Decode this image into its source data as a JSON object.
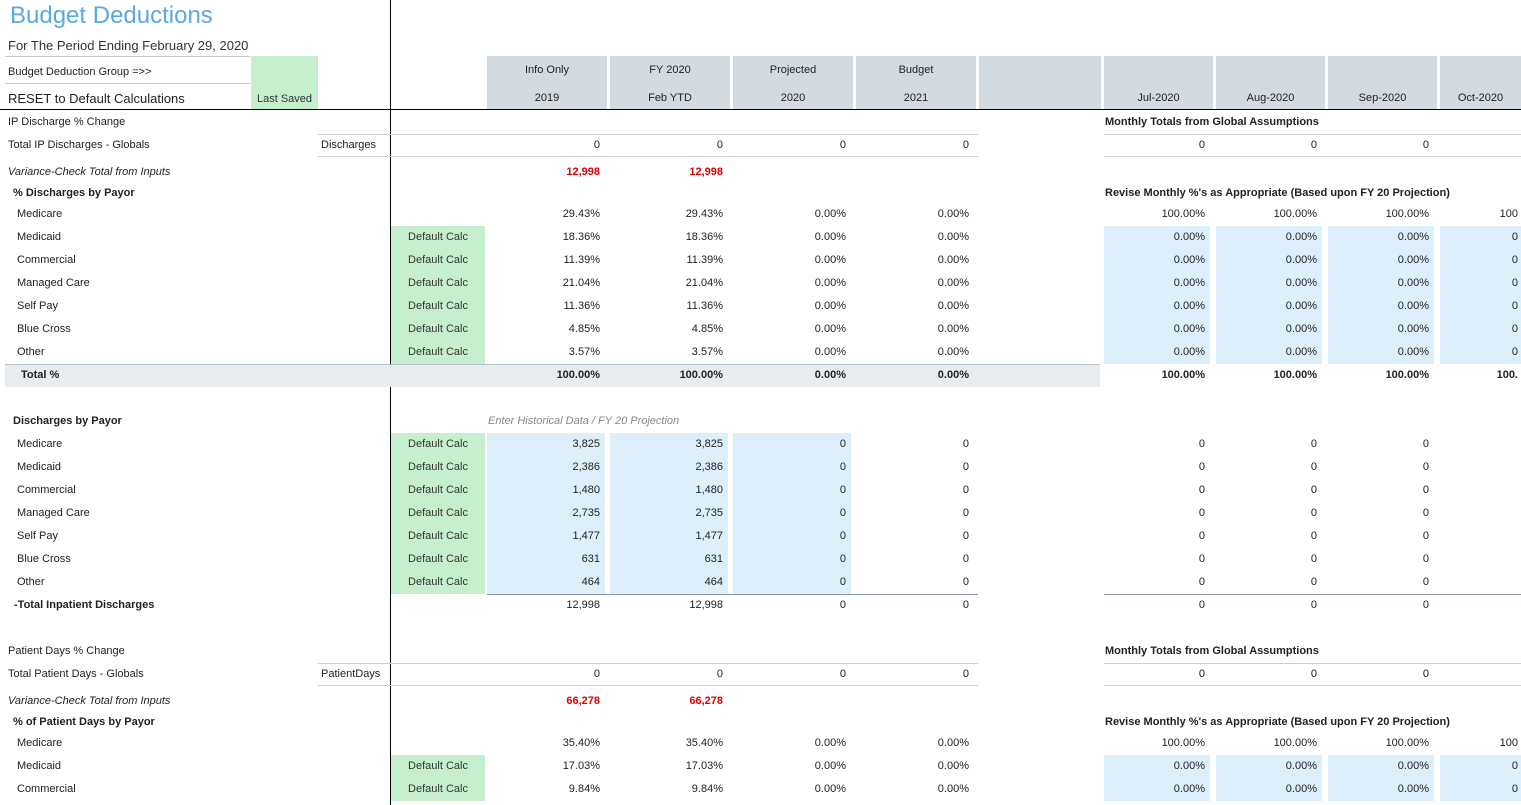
{
  "header": {
    "title": "Budget Deductions",
    "subtitle": "For The Period Ending February 29, 2020",
    "group_label": "Budget Deduction Group =>>",
    "reset_label": "RESET to Default Calculations",
    "last_saved": "Last Saved"
  },
  "annual_columns": [
    {
      "top": "Info Only",
      "bottom": "2019"
    },
    {
      "top": "FY 2020",
      "bottom": "Feb YTD"
    },
    {
      "top": "Projected",
      "bottom": "2020"
    },
    {
      "top": "Budget",
      "bottom": "2021"
    }
  ],
  "monthly_columns": [
    "Jul-2020",
    "Aug-2020",
    "Sep-2020",
    "Oct-2020"
  ],
  "sections": [
    {
      "rows": [
        {
          "label": "IP Discharge % Change",
          "style": "plain",
          "note": "Monthly Totals from Global Assumptions"
        },
        {
          "label": "Total IP Discharges - Globals",
          "style": "plain",
          "tag": "Discharges",
          "values": [
            "0",
            "0",
            "0",
            "0"
          ],
          "monthly": [
            "0",
            "0",
            "0"
          ]
        },
        {
          "label": "Variance-Check Total from Inputs",
          "style": "variance",
          "values": [
            "12,998",
            "12,998"
          ]
        },
        {
          "label": "% Discharges by Payor",
          "style": "heading",
          "note": "Revise Monthly %'s as Appropriate (Based upon FY 20 Projection)"
        },
        {
          "label": "Medicare",
          "style": "indent",
          "values": [
            "29.43%",
            "29.43%",
            "0.00%",
            "0.00%"
          ],
          "monthly": [
            "100.00%",
            "100.00%",
            "100.00%",
            "100"
          ]
        },
        {
          "label": "Medicaid",
          "style": "indent",
          "calc": "Default Calc",
          "input": "monthly",
          "values": [
            "18.36%",
            "18.36%",
            "0.00%",
            "0.00%"
          ],
          "monthly": [
            "0.00%",
            "0.00%",
            "0.00%",
            "0"
          ]
        },
        {
          "label": "Commercial",
          "style": "indent",
          "calc": "Default Calc",
          "input": "monthly",
          "values": [
            "11.39%",
            "11.39%",
            "0.00%",
            "0.00%"
          ],
          "monthly": [
            "0.00%",
            "0.00%",
            "0.00%",
            "0"
          ]
        },
        {
          "label": "Managed Care",
          "style": "indent",
          "calc": "Default Calc",
          "input": "monthly",
          "values": [
            "21.04%",
            "21.04%",
            "0.00%",
            "0.00%"
          ],
          "monthly": [
            "0.00%",
            "0.00%",
            "0.00%",
            "0"
          ]
        },
        {
          "label": "Self Pay",
          "style": "indent",
          "calc": "Default Calc",
          "input": "monthly",
          "values": [
            "11.36%",
            "11.36%",
            "0.00%",
            "0.00%"
          ],
          "monthly": [
            "0.00%",
            "0.00%",
            "0.00%",
            "0"
          ]
        },
        {
          "label": "Blue Cross",
          "style": "indent",
          "calc": "Default Calc",
          "input": "monthly",
          "values": [
            "4.85%",
            "4.85%",
            "0.00%",
            "0.00%"
          ],
          "monthly": [
            "0.00%",
            "0.00%",
            "0.00%",
            "0"
          ]
        },
        {
          "label": "Other",
          "style": "indent",
          "calc": "Default Calc",
          "input": "monthly",
          "values": [
            "3.57%",
            "3.57%",
            "0.00%",
            "0.00%"
          ],
          "monthly": [
            "0.00%",
            "0.00%",
            "0.00%",
            "0"
          ]
        },
        {
          "label": "Total %",
          "style": "total",
          "values": [
            "100.00%",
            "100.00%",
            "0.00%",
            "0.00%"
          ],
          "monthly": [
            "100.00%",
            "100.00%",
            "100.00%",
            "100."
          ]
        }
      ]
    },
    {
      "rows": [
        {
          "label": "Discharges by Payor",
          "style": "heading",
          "hint": "Enter Historical Data / FY 20 Projection"
        },
        {
          "label": "Medicare",
          "style": "indent",
          "calc": "Default Calc",
          "input": "annual",
          "values": [
            "3,825",
            "3,825",
            "0",
            "0"
          ],
          "monthly": [
            "0",
            "0",
            "0"
          ]
        },
        {
          "label": "Medicaid",
          "style": "indent",
          "calc": "Default Calc",
          "input": "annual",
          "values": [
            "2,386",
            "2,386",
            "0",
            "0"
          ],
          "monthly": [
            "0",
            "0",
            "0"
          ]
        },
        {
          "label": "Commercial",
          "style": "indent",
          "calc": "Default Calc",
          "input": "annual",
          "values": [
            "1,480",
            "1,480",
            "0",
            "0"
          ],
          "monthly": [
            "0",
            "0",
            "0"
          ]
        },
        {
          "label": "Managed Care",
          "style": "indent",
          "calc": "Default Calc",
          "input": "annual",
          "values": [
            "2,735",
            "2,735",
            "0",
            "0"
          ],
          "monthly": [
            "0",
            "0",
            "0"
          ]
        },
        {
          "label": "Self Pay",
          "style": "indent",
          "calc": "Default Calc",
          "input": "annual",
          "values": [
            "1,477",
            "1,477",
            "0",
            "0"
          ],
          "monthly": [
            "0",
            "0",
            "0"
          ]
        },
        {
          "label": "Blue Cross",
          "style": "indent",
          "calc": "Default Calc",
          "input": "annual",
          "values": [
            "631",
            "631",
            "0",
            "0"
          ],
          "monthly": [
            "0",
            "0",
            "0"
          ]
        },
        {
          "label": "Other",
          "style": "indent",
          "calc": "Default Calc",
          "input": "annual",
          "values": [
            "464",
            "464",
            "0",
            "0"
          ],
          "monthly": [
            "0",
            "0",
            "0"
          ]
        },
        {
          "label": "-Total Inpatient Discharges",
          "style": "sum",
          "values": [
            "12,998",
            "12,998",
            "0",
            "0"
          ],
          "monthly": [
            "0",
            "0",
            "0"
          ]
        }
      ]
    },
    {
      "rows": [
        {
          "label": "Patient Days % Change",
          "style": "plain",
          "note": "Monthly Totals from Global Assumptions"
        },
        {
          "label": "Total Patient Days - Globals",
          "style": "plain",
          "tag": "PatientDays",
          "values": [
            "0",
            "0",
            "0",
            "0"
          ],
          "monthly": [
            "0",
            "0",
            "0"
          ]
        },
        {
          "label": "Variance-Check Total from Inputs",
          "style": "variance",
          "values": [
            "66,278",
            "66,278"
          ]
        },
        {
          "label": "% of Patient Days by Payor",
          "style": "heading",
          "note": "Revise Monthly %'s as Appropriate (Based upon FY 20 Projection)"
        },
        {
          "label": "Medicare",
          "style": "indent",
          "values": [
            "35.40%",
            "35.40%",
            "0.00%",
            "0.00%"
          ],
          "monthly": [
            "100.00%",
            "100.00%",
            "100.00%",
            "100"
          ]
        },
        {
          "label": "Medicaid",
          "style": "indent",
          "calc": "Default Calc",
          "input": "monthly",
          "values": [
            "17.03%",
            "17.03%",
            "0.00%",
            "0.00%"
          ],
          "monthly": [
            "0.00%",
            "0.00%",
            "0.00%",
            "0"
          ]
        },
        {
          "label": "Commercial",
          "style": "indent",
          "calc": "Default Calc",
          "input": "monthly",
          "values": [
            "9.84%",
            "9.84%",
            "0.00%",
            "0.00%"
          ],
          "monthly": [
            "0.00%",
            "0.00%",
            "0.00%",
            "0"
          ]
        }
      ]
    }
  ]
}
